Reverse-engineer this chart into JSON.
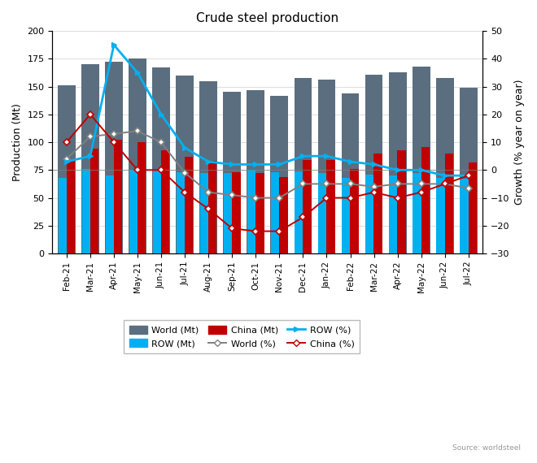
{
  "title": "Crude steel production",
  "ylabel_left": "Production (Mt)",
  "ylabel_right": "Growth (% year on year)",
  "source": "Source: worldsteel",
  "categories": [
    "Feb-21",
    "Mar-21",
    "Apr-21",
    "May-21",
    "Jun-21",
    "Jul-21",
    "Aug-21",
    "Sep-21",
    "Oct-21",
    "Nov-21",
    "Dec-21",
    "Jan-22",
    "Feb-22",
    "Mar-22",
    "Apr-22",
    "May-22",
    "Jun-22",
    "Jul-22"
  ],
  "world_mt": [
    151,
    170,
    172,
    175,
    167,
    160,
    155,
    145,
    147,
    142,
    158,
    156,
    144,
    161,
    163,
    168,
    158,
    149
  ],
  "row_mt": [
    68,
    76,
    70,
    75,
    75,
    73,
    72,
    72,
    75,
    73,
    74,
    72,
    68,
    71,
    70,
    72,
    68,
    67
  ],
  "china_mt": [
    83,
    94,
    102,
    100,
    93,
    87,
    83,
    73,
    72,
    69,
    84,
    84,
    76,
    90,
    93,
    96,
    90,
    82
  ],
  "world_pct": [
    4,
    12,
    13,
    14,
    10,
    -1,
    -8,
    -9,
    -10,
    -10,
    -5,
    -5,
    -5,
    -6,
    -5,
    -5,
    -5,
    -6.5
  ],
  "row_pct": [
    3,
    5,
    45,
    35,
    20,
    8,
    3,
    2,
    2,
    2,
    5,
    5,
    3,
    2,
    0,
    0,
    -2,
    -2
  ],
  "china_pct": [
    10,
    20,
    10,
    0,
    0,
    -8,
    -14,
    -21,
    -22,
    -22,
    -17,
    -10,
    -10,
    -8,
    -10,
    -8,
    -5,
    -2
  ],
  "ylim_left": [
    0,
    200
  ],
  "ylim_right": [
    -30,
    50
  ],
  "yticks_left": [
    0,
    25,
    50,
    75,
    100,
    125,
    150,
    175,
    200
  ],
  "yticks_right": [
    -30,
    -20,
    -10,
    0,
    10,
    20,
    30,
    40,
    50
  ],
  "world_bar_color": "#5a6e7f",
  "row_bar_color": "#00b0f0",
  "china_bar_color": "#c00000",
  "world_line_color": "#808080",
  "row_line_color": "#00b0f0",
  "china_line_color": "#c00000"
}
